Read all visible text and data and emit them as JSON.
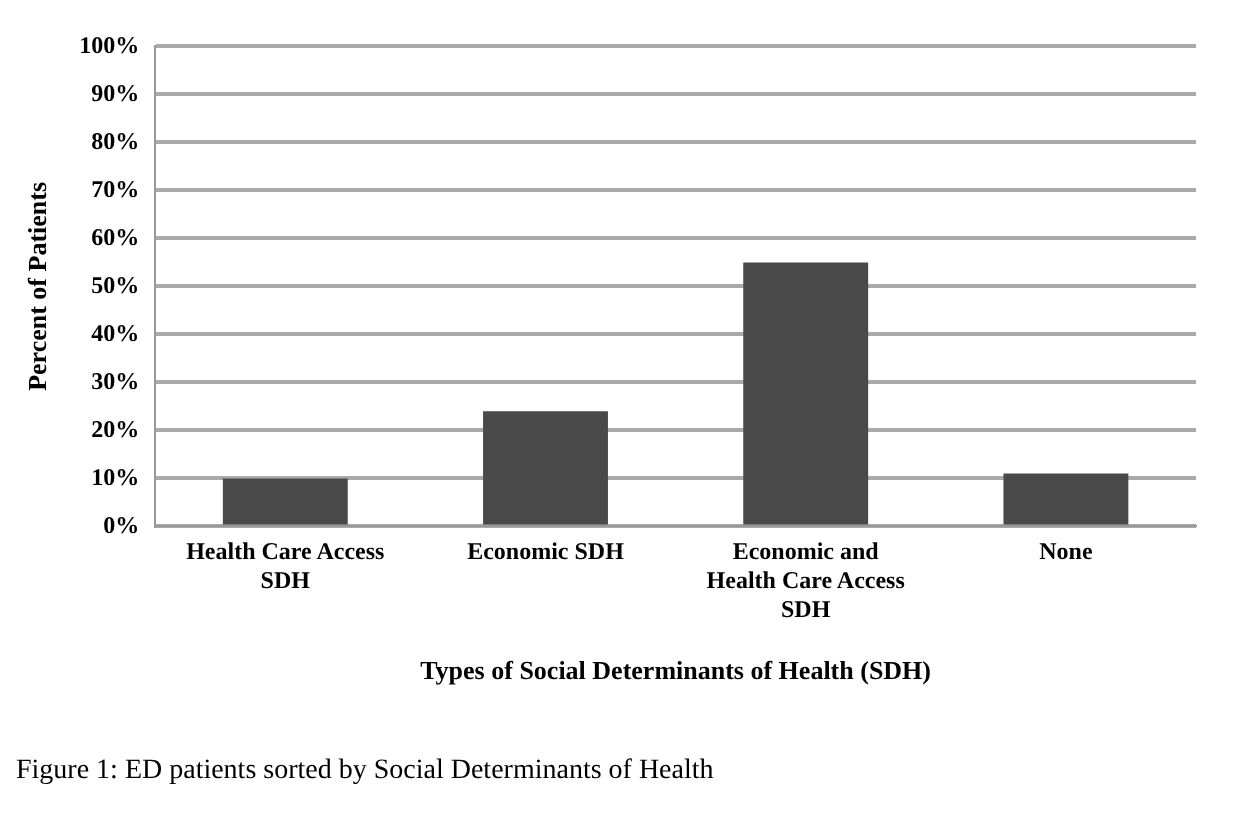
{
  "chart_data": {
    "type": "bar",
    "xlabel": "Types of Social Determinants of Health (SDH)",
    "ylabel": "Percent of Patients",
    "categories": [
      "Health Care Access SDH",
      "Economic SDH",
      "Economic and Health Care Access SDH",
      "None"
    ],
    "values": [
      10,
      24,
      55,
      11
    ],
    "color": "#494949",
    "ylim": [
      0,
      100
    ],
    "yticks": [
      {
        "value": 0,
        "label": "0%"
      },
      {
        "value": 10,
        "label": "10%"
      },
      {
        "value": 20,
        "label": "20%"
      },
      {
        "value": 30,
        "label": "30%"
      },
      {
        "value": 40,
        "label": "40%"
      },
      {
        "value": 50,
        "label": "50%"
      },
      {
        "value": 60,
        "label": "60%"
      },
      {
        "value": 70,
        "label": "70%"
      },
      {
        "value": 80,
        "label": "80%"
      },
      {
        "value": 90,
        "label": "90%"
      },
      {
        "value": 100,
        "label": "100%"
      }
    ],
    "grid": "y",
    "legend": false,
    "annotations": [
      "Figure 1: ED patients sorted by Social Determinants of Health"
    ]
  }
}
